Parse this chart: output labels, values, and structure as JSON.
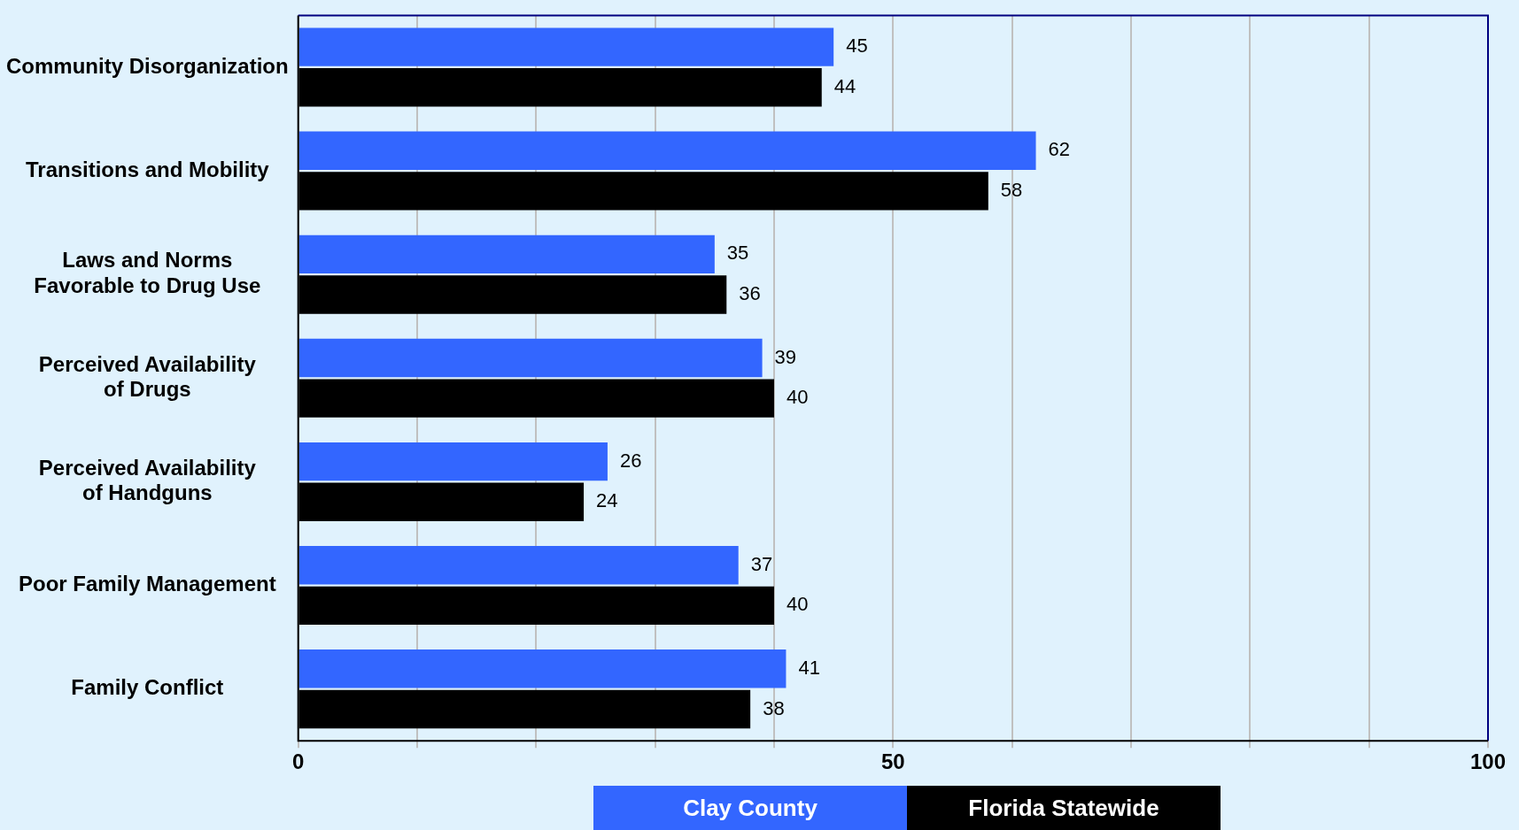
{
  "chart_data": {
    "type": "bar",
    "orientation": "horizontal",
    "categories": [
      "Community Disorganization",
      "Transitions and Mobility",
      "Laws and Norms Favorable to Drug Use",
      "Perceived Availability of Drugs",
      "Perceived Availability of Handguns",
      "Poor Family Management",
      "Family Conflict"
    ],
    "series": [
      {
        "name": "Clay County",
        "color": "#3366ff",
        "values": [
          45,
          62,
          35,
          39,
          26,
          37,
          41
        ]
      },
      {
        "name": "Florida Statewide",
        "color": "#000000",
        "values": [
          44,
          58,
          36,
          40,
          24,
          40,
          38
        ]
      }
    ],
    "xlim": [
      0,
      100
    ],
    "xticks": [
      0,
      {
        "value": 10,
        "label": null
      },
      {
        "value": 20,
        "label": null
      },
      {
        "value": 30,
        "label": null
      },
      {
        "value": 40,
        "label": null
      },
      50,
      {
        "value": 60,
        "label": null
      },
      {
        "value": 70,
        "label": null
      },
      {
        "value": 80,
        "label": null
      },
      {
        "value": 90,
        "label": null
      },
      100
    ],
    "grid": "x",
    "legend": "bottom",
    "data_labels": true
  }
}
